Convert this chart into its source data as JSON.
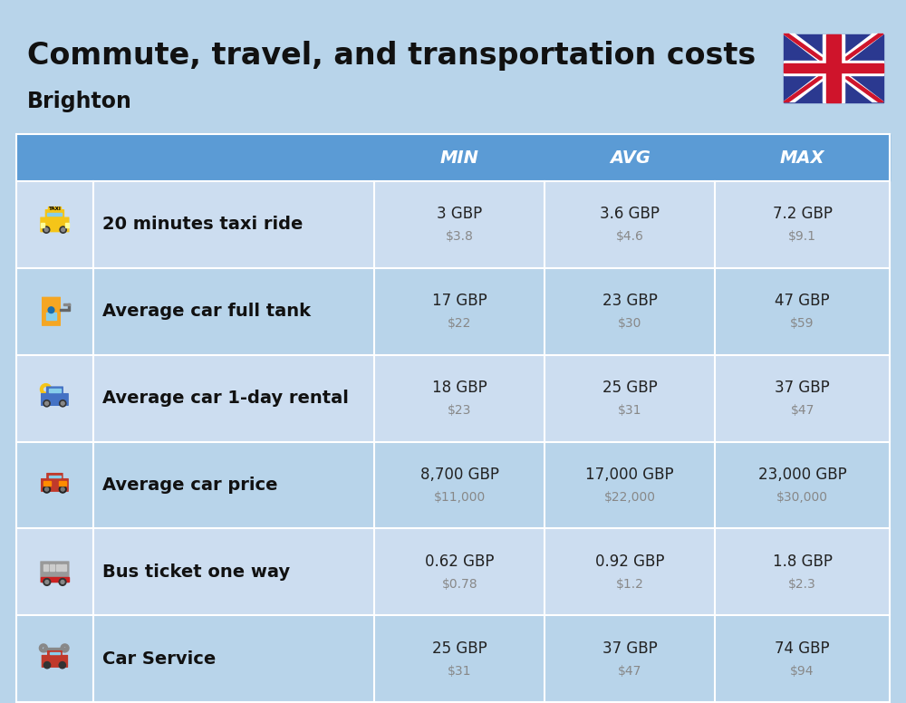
{
  "title": "Commute, travel, and transportation costs",
  "subtitle": "Brighton",
  "bg_color": "#b8d4ea",
  "header_bg": "#5b9bd5",
  "header_text_color": "#ffffff",
  "row_bg_light": "#ccddf0",
  "row_bg_dark": "#b8d4ea",
  "label_color": "#111111",
  "value_color": "#222222",
  "subvalue_color": "#888888",
  "columns": [
    "MIN",
    "AVG",
    "MAX"
  ],
  "rows": [
    {
      "label": "20 minutes taxi ride",
      "min_gbp": "3 GBP",
      "min_usd": "$3.8",
      "avg_gbp": "3.6 GBP",
      "avg_usd": "$4.6",
      "max_gbp": "7.2 GBP",
      "max_usd": "$9.1"
    },
    {
      "label": "Average car full tank",
      "min_gbp": "17 GBP",
      "min_usd": "$22",
      "avg_gbp": "23 GBP",
      "avg_usd": "$30",
      "max_gbp": "47 GBP",
      "max_usd": "$59"
    },
    {
      "label": "Average car 1-day rental",
      "min_gbp": "18 GBP",
      "min_usd": "$23",
      "avg_gbp": "25 GBP",
      "avg_usd": "$31",
      "max_gbp": "37 GBP",
      "max_usd": "$47"
    },
    {
      "label": "Average car price",
      "min_gbp": "8,700 GBP",
      "min_usd": "$11,000",
      "avg_gbp": "17,000 GBP",
      "avg_usd": "$22,000",
      "max_gbp": "23,000 GBP",
      "max_usd": "$30,000"
    },
    {
      "label": "Bus ticket one way",
      "min_gbp": "0.62 GBP",
      "min_usd": "$0.78",
      "avg_gbp": "0.92 GBP",
      "avg_usd": "$1.2",
      "max_gbp": "1.8 GBP",
      "max_usd": "$2.3"
    },
    {
      "label": "Car Service",
      "min_gbp": "25 GBP",
      "min_usd": "$31",
      "avg_gbp": "37 GBP",
      "avg_usd": "$47",
      "max_gbp": "74 GBP",
      "max_usd": "$94"
    }
  ]
}
